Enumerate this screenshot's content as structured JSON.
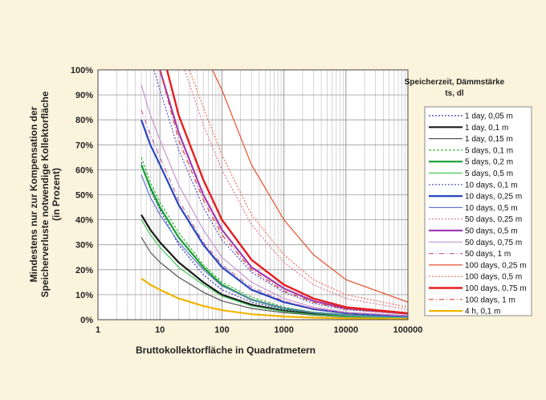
{
  "chart_data": {
    "type": "line",
    "xscale": "log",
    "xlim": [
      1,
      100000
    ],
    "ylim": [
      0,
      100
    ],
    "x_ticks": [
      "1",
      "10",
      "100",
      "1000",
      "10000",
      "100000"
    ],
    "y_ticks": [
      "0%",
      "10%",
      "20%",
      "30%",
      "40%",
      "50%",
      "60%",
      "70%",
      "80%",
      "90%",
      "100%"
    ],
    "xlabel": "Bruttokollektorfläche in Quadratmetern",
    "ylabel_lines": [
      "Mindestens nur zur Kompensation der",
      "Speicherverluste notwendige Kollektorfläche",
      "(in Prozent)"
    ],
    "grid": true,
    "legend_title_lines": [
      "Speicherzeit,  Dämmstärke",
      "ts,  dl"
    ],
    "legend_position": "right",
    "series": [
      {
        "name": "1 day, 0,05 m",
        "color": "#3a3ab4",
        "dash": "2,2",
        "width": 1.2,
        "points": [
          [
            5,
            63
          ],
          [
            7,
            52
          ],
          [
            10,
            44
          ],
          [
            20,
            30
          ],
          [
            50,
            18
          ],
          [
            100,
            12
          ],
          [
            300,
            7
          ],
          [
            1000,
            4
          ],
          [
            3000,
            2.5
          ],
          [
            10000,
            1.6
          ],
          [
            100000,
            1
          ]
        ]
      },
      {
        "name": "1 day, 0,1 m",
        "color": "#1a1a1a",
        "dash": "",
        "width": 2.2,
        "points": [
          [
            5,
            42
          ],
          [
            7,
            36
          ],
          [
            10,
            31
          ],
          [
            20,
            23
          ],
          [
            50,
            15
          ],
          [
            100,
            10
          ],
          [
            300,
            6
          ],
          [
            1000,
            3.5
          ],
          [
            3000,
            2.2
          ],
          [
            10000,
            1.4
          ],
          [
            100000,
            0.8
          ]
        ]
      },
      {
        "name": "1 day, 0,15 m",
        "color": "#555555",
        "dash": "",
        "width": 1.2,
        "points": [
          [
            5,
            33
          ],
          [
            7,
            27
          ],
          [
            10,
            23
          ],
          [
            20,
            17
          ],
          [
            50,
            11
          ],
          [
            100,
            7.5
          ],
          [
            300,
            4.5
          ],
          [
            1000,
            2.8
          ],
          [
            3000,
            1.8
          ],
          [
            10000,
            1.1
          ],
          [
            100000,
            0.6
          ]
        ]
      },
      {
        "name": "5 days, 0,1 m",
        "color": "#3cb43c",
        "dash": "3,2",
        "width": 1.2,
        "points": [
          [
            5,
            65
          ],
          [
            7,
            55
          ],
          [
            10,
            47
          ],
          [
            20,
            35
          ],
          [
            50,
            22
          ],
          [
            100,
            15
          ],
          [
            300,
            9
          ],
          [
            1000,
            5
          ],
          [
            3000,
            3
          ],
          [
            10000,
            2
          ],
          [
            100000,
            1.2
          ]
        ]
      },
      {
        "name": "5 days, 0,2 m",
        "color": "#14a032",
        "dash": "",
        "width": 2.2,
        "points": [
          [
            5,
            62
          ],
          [
            7,
            53
          ],
          [
            10,
            45
          ],
          [
            20,
            33
          ],
          [
            50,
            21
          ],
          [
            100,
            14
          ],
          [
            300,
            8
          ],
          [
            1000,
            4.5
          ],
          [
            3000,
            2.8
          ],
          [
            10000,
            1.8
          ],
          [
            100000,
            1
          ]
        ]
      },
      {
        "name": "5 days, 0,5 m",
        "color": "#46c85a",
        "dash": "",
        "width": 1.2,
        "points": [
          [
            5,
            40
          ],
          [
            7,
            34
          ],
          [
            10,
            29
          ],
          [
            20,
            21
          ],
          [
            50,
            14
          ],
          [
            100,
            9.5
          ],
          [
            300,
            5.5
          ],
          [
            1000,
            3.2
          ],
          [
            3000,
            2
          ],
          [
            10000,
            1.3
          ],
          [
            100000,
            0.7
          ]
        ]
      },
      {
        "name": "10 days, 0,1 m",
        "color": "#4b50c8",
        "dash": "2,2",
        "width": 1.2,
        "points": [
          [
            8,
            100
          ],
          [
            10,
            92
          ],
          [
            20,
            68
          ],
          [
            50,
            45
          ],
          [
            100,
            32
          ],
          [
            300,
            19
          ],
          [
            1000,
            11
          ],
          [
            3000,
            6.5
          ],
          [
            10000,
            4
          ],
          [
            100000,
            2.2
          ]
        ]
      },
      {
        "name": "10 days, 0,25 m",
        "color": "#2846c0",
        "dash": "",
        "width": 2.2,
        "points": [
          [
            5,
            80
          ],
          [
            7,
            70
          ],
          [
            10,
            62
          ],
          [
            20,
            46
          ],
          [
            50,
            30
          ],
          [
            100,
            21
          ],
          [
            300,
            12
          ],
          [
            1000,
            7
          ],
          [
            3000,
            4.2
          ],
          [
            10000,
            2.6
          ],
          [
            100000,
            1.4
          ]
        ]
      },
      {
        "name": "10 days, 0,5 m",
        "color": "#6478d2",
        "dash": "",
        "width": 1.2,
        "points": [
          [
            5,
            58
          ],
          [
            7,
            49
          ],
          [
            10,
            42
          ],
          [
            20,
            31
          ],
          [
            50,
            20
          ],
          [
            100,
            13.5
          ],
          [
            300,
            8
          ],
          [
            1000,
            4.6
          ],
          [
            3000,
            2.8
          ],
          [
            10000,
            1.8
          ],
          [
            100000,
            1
          ]
        ]
      },
      {
        "name": "50 days, 0,25 m",
        "color": "#e07890",
        "dash": "2,2",
        "width": 1.2,
        "points": [
          [
            25,
            100
          ],
          [
            50,
            78
          ],
          [
            100,
            60
          ],
          [
            300,
            38
          ],
          [
            1000,
            23
          ],
          [
            3000,
            14
          ],
          [
            10000,
            8.5
          ],
          [
            100000,
            4
          ]
        ]
      },
      {
        "name": "50 days, 0,5 m",
        "color": "#a03cb4",
        "dash": "",
        "width": 2.2,
        "points": [
          [
            10,
            100
          ],
          [
            20,
            75
          ],
          [
            50,
            50
          ],
          [
            100,
            36
          ],
          [
            300,
            21
          ],
          [
            1000,
            12.5
          ],
          [
            3000,
            7.5
          ],
          [
            10000,
            4.5
          ],
          [
            100000,
            2.4
          ]
        ]
      },
      {
        "name": "50 days, 0,75 m",
        "color": "#c896d2",
        "dash": "",
        "width": 1.2,
        "points": [
          [
            5,
            94
          ],
          [
            7,
            82
          ],
          [
            10,
            72
          ],
          [
            20,
            54
          ],
          [
            50,
            36
          ],
          [
            100,
            25
          ],
          [
            300,
            15
          ],
          [
            1000,
            8.5
          ],
          [
            3000,
            5
          ],
          [
            10000,
            3
          ],
          [
            100000,
            1.6
          ]
        ]
      },
      {
        "name": "50 days, 1 m",
        "color": "#c864a0",
        "dash": "6,3,1,3",
        "width": 1.2,
        "points": [
          [
            5,
            84
          ],
          [
            7,
            74
          ],
          [
            10,
            65
          ],
          [
            20,
            48
          ],
          [
            50,
            31
          ],
          [
            100,
            22
          ],
          [
            300,
            13
          ],
          [
            1000,
            7.5
          ],
          [
            3000,
            4.5
          ],
          [
            10000,
            2.7
          ],
          [
            100000,
            1.5
          ]
        ]
      },
      {
        "name": "100 days, 0,25 m",
        "color": "#e6502d",
        "dash": "",
        "width": 1.2,
        "points": [
          [
            70,
            100
          ],
          [
            100,
            92
          ],
          [
            300,
            62
          ],
          [
            1000,
            40
          ],
          [
            3000,
            26
          ],
          [
            10000,
            16
          ],
          [
            100000,
            7
          ]
        ]
      },
      {
        "name": "100 days, 0,5 m",
        "color": "#f06e5a",
        "dash": "2,2",
        "width": 1.2,
        "points": [
          [
            30,
            100
          ],
          [
            50,
            85
          ],
          [
            100,
            66
          ],
          [
            300,
            42
          ],
          [
            1000,
            26
          ],
          [
            3000,
            16
          ],
          [
            10000,
            10
          ],
          [
            100000,
            5
          ]
        ]
      },
      {
        "name": "100 days, 0,75 m",
        "color": "#e61e1e",
        "dash": "",
        "width": 2.4,
        "points": [
          [
            13,
            100
          ],
          [
            20,
            82
          ],
          [
            50,
            56
          ],
          [
            100,
            40
          ],
          [
            300,
            24
          ],
          [
            1000,
            14
          ],
          [
            3000,
            8.5
          ],
          [
            10000,
            5
          ],
          [
            100000,
            2.6
          ]
        ]
      },
      {
        "name": "100 days, 1 m",
        "color": "#dc4628",
        "dash": "6,3,1,3",
        "width": 1.2,
        "points": [
          [
            10,
            100
          ],
          [
            20,
            72
          ],
          [
            50,
            48
          ],
          [
            100,
            34
          ],
          [
            300,
            20
          ],
          [
            1000,
            11.5
          ],
          [
            3000,
            7
          ],
          [
            10000,
            4.2
          ],
          [
            100000,
            2.2
          ]
        ]
      },
      {
        "name": "4 h, 0,1 m",
        "color": "#f0b400",
        "dash": "",
        "width": 2.2,
        "points": [
          [
            5,
            16.5
          ],
          [
            7,
            14
          ],
          [
            10,
            12
          ],
          [
            20,
            8.5
          ],
          [
            50,
            5.5
          ],
          [
            100,
            3.8
          ],
          [
            300,
            2.2
          ],
          [
            1000,
            1.3
          ],
          [
            3000,
            0.8
          ],
          [
            10000,
            0.5
          ],
          [
            100000,
            0.3
          ]
        ]
      }
    ]
  }
}
